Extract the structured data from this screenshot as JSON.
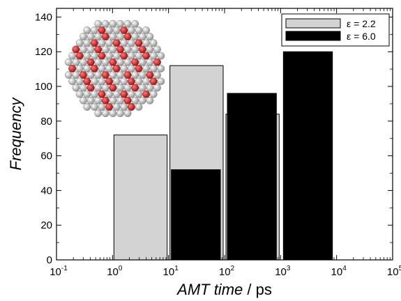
{
  "chart_data": {
    "type": "bar",
    "xlabel_italic": "AMT time",
    "xlabel_unit": " / ps",
    "ylabel": "Frequency",
    "xscale": "log",
    "xlim": [
      0.1,
      100000
    ],
    "ylim": [
      0,
      145
    ],
    "x_ticks": [
      {
        "base": "10",
        "exp": "-1",
        "value": 0.1
      },
      {
        "base": "10",
        "exp": "0",
        "value": 1
      },
      {
        "base": "10",
        "exp": "1",
        "value": 10
      },
      {
        "base": "10",
        "exp": "2",
        "value": 100
      },
      {
        "base": "10",
        "exp": "3",
        "value": 1000
      },
      {
        "base": "10",
        "exp": "4",
        "value": 10000
      },
      {
        "base": "10",
        "exp": "5",
        "value": 100000
      }
    ],
    "y_ticks": [
      "0",
      "20",
      "40",
      "60",
      "80",
      "100",
      "120",
      "140"
    ],
    "bin_edges": [
      1,
      10,
      100,
      1000,
      10000
    ],
    "series": [
      {
        "name": "ε = 2.2",
        "color": "#d3d3d3",
        "values": [
          72,
          112,
          84,
          0
        ]
      },
      {
        "name": "ε = 6.0",
        "color": "#000000",
        "values": [
          0,
          52,
          96,
          120
        ]
      }
    ],
    "legend_position": "top-right",
    "grid": false,
    "inset": {
      "description": "nanoparticle cluster image",
      "colors": {
        "shell": "#d8d8d8",
        "core": "#e01818"
      }
    }
  }
}
